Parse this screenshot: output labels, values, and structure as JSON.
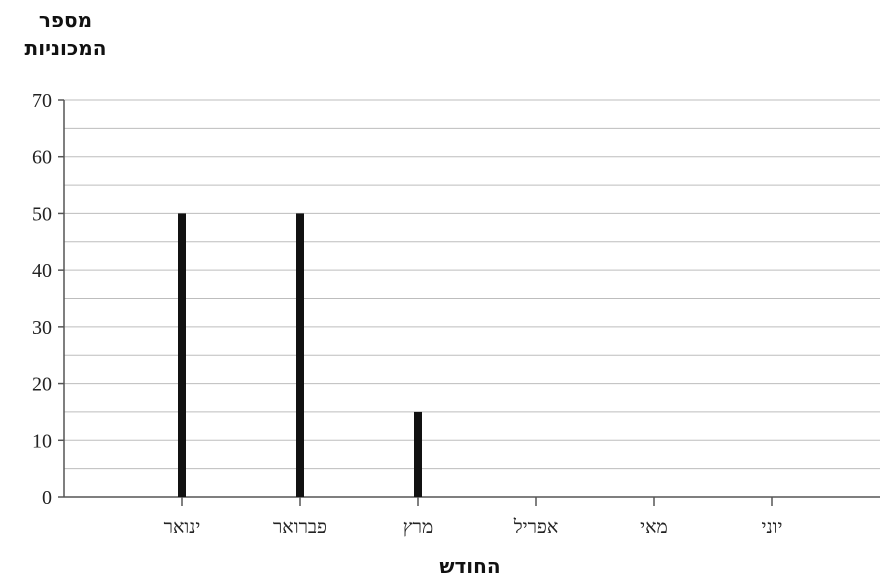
{
  "chart_data": {
    "type": "bar",
    "title": "",
    "ylabel_lines": [
      "מספר",
      "המכוניות"
    ],
    "xlabel": "החודש",
    "categories": [
      "ינואר",
      "פברואר",
      "מרץ",
      "אפריל",
      "מאי",
      "יוני"
    ],
    "values": [
      50,
      50,
      15,
      null,
      null,
      null
    ],
    "ylim": [
      0,
      70
    ],
    "yticks": [
      0,
      10,
      20,
      30,
      40,
      50,
      60,
      70
    ],
    "minor_step": 5,
    "grid": true,
    "bar_color": "#111111",
    "grid_color": "#bdbdbd",
    "axis_color": "#555555"
  }
}
